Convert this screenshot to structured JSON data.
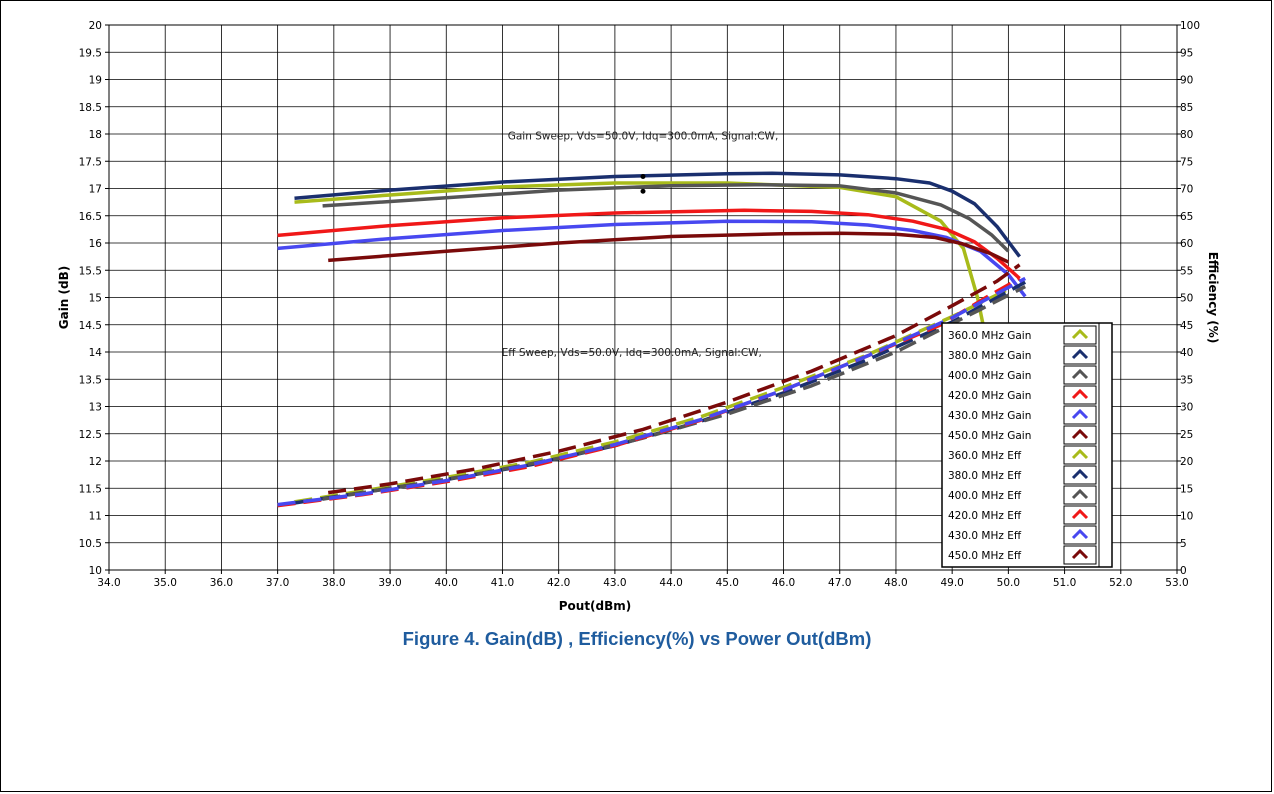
{
  "caption": "Figure 4. Gain(dB) , Efficiency(%) vs Power Out(dBm)",
  "chart_data": {
    "type": "line",
    "xlabel": "Pout(dBm)",
    "ylabel": "Gain (dB)",
    "y2label": "Efficiency (%)",
    "xlim": [
      34,
      53
    ],
    "ylim": [
      10,
      20
    ],
    "y2lim": [
      0,
      100
    ],
    "x_ticks": [
      "34.0",
      "35.0",
      "36.0",
      "37.0",
      "38.0",
      "39.0",
      "40.0",
      "41.0",
      "42.0",
      "43.0",
      "44.0",
      "45.0",
      "46.0",
      "47.0",
      "48.0",
      "49.0",
      "50.0",
      "51.0",
      "52.0",
      "53.0"
    ],
    "y_ticks": [
      "10",
      "10.5",
      "11",
      "11.5",
      "12",
      "12.5",
      "13",
      "13.5",
      "14",
      "14.5",
      "15",
      "15.5",
      "16",
      "16.5",
      "17",
      "17.5",
      "18",
      "18.5",
      "19",
      "19.5",
      "20"
    ],
    "y2_ticks": [
      "0",
      "5",
      "10",
      "15",
      "20",
      "25",
      "30",
      "35",
      "40",
      "45",
      "50",
      "55",
      "60",
      "65",
      "70",
      "75",
      "80",
      "85",
      "90",
      "95",
      "100"
    ],
    "grid": true,
    "legend_position": "right",
    "annotations": [
      {
        "text": "Gain Sweep, Vds=50.0V, Idq=300.0mA, Signal:CW,",
        "x": 43.5,
        "y": 17.97
      },
      {
        "text": "Eff Sweep, Vds=50.0V, Idq=300.0mA, Signal:CW,",
        "x": 43.3,
        "y": 14.0
      }
    ],
    "series": [
      {
        "name": "360.0 MHz Gain",
        "color": "#a8bb1a",
        "dash": false,
        "axis": "left",
        "x": [
          37.3,
          39.0,
          41.0,
          43.0,
          45.0,
          47.0,
          48.0,
          48.8,
          49.2,
          49.45,
          49.65,
          49.78
        ],
        "y": [
          16.75,
          16.88,
          17.03,
          17.1,
          17.1,
          17.02,
          16.85,
          16.4,
          15.9,
          15.0,
          14.0,
          13.2
        ]
      },
      {
        "name": "380.0 MHz Gain",
        "color": "#1a2f6e",
        "dash": false,
        "axis": "left",
        "x": [
          37.3,
          39.0,
          41.0,
          43.0,
          45.0,
          45.8,
          47.0,
          48.0,
          48.6,
          49.0,
          49.4,
          49.8,
          50.2
        ],
        "y": [
          16.82,
          16.97,
          17.12,
          17.22,
          17.27,
          17.28,
          17.25,
          17.18,
          17.1,
          16.95,
          16.72,
          16.3,
          15.75
        ]
      },
      {
        "name": "400.0 MHz Gain",
        "color": "#555555",
        "dash": false,
        "axis": "left",
        "x": [
          37.8,
          40.0,
          42.0,
          44.0,
          45.5,
          47.0,
          48.0,
          48.8,
          49.3,
          49.7,
          50.0
        ],
        "y": [
          16.68,
          16.83,
          16.97,
          17.05,
          17.07,
          17.05,
          16.92,
          16.7,
          16.45,
          16.15,
          15.85
        ]
      },
      {
        "name": "420.0 MHz Gain",
        "color": "#f01818",
        "dash": false,
        "axis": "left",
        "x": [
          37.0,
          39.0,
          41.0,
          43.0,
          45.3,
          46.5,
          47.5,
          48.3,
          48.9,
          49.4,
          49.8,
          50.2
        ],
        "y": [
          16.14,
          16.32,
          16.46,
          16.55,
          16.6,
          16.58,
          16.52,
          16.4,
          16.25,
          16.02,
          15.72,
          15.35
        ]
      },
      {
        "name": "430.0 MHz Gain",
        "color": "#4848f0",
        "dash": false,
        "axis": "left",
        "x": [
          37.0,
          39.0,
          41.0,
          43.0,
          45.0,
          46.5,
          47.5,
          48.3,
          48.9,
          49.5,
          50.0,
          50.3
        ],
        "y": [
          15.9,
          16.08,
          16.23,
          16.34,
          16.4,
          16.39,
          16.33,
          16.23,
          16.1,
          15.85,
          15.42,
          15.02
        ]
      },
      {
        "name": "450.0 MHz Gain",
        "color": "#7a0a0a",
        "dash": false,
        "axis": "left",
        "x": [
          37.9,
          40.0,
          42.0,
          44.0,
          46.0,
          47.0,
          48.0,
          48.7,
          49.2,
          49.7,
          50.0
        ],
        "y": [
          15.68,
          15.85,
          16.0,
          16.12,
          16.17,
          16.18,
          16.16,
          16.1,
          15.98,
          15.8,
          15.65
        ]
      },
      {
        "name": "360.0 MHz Eff",
        "color": "#a8bb1a",
        "dash": true,
        "axis": "right",
        "x": [
          37.3,
          38.5,
          40.0,
          41.5,
          43.0,
          44.5,
          46.0,
          47.5,
          49.0,
          50.0
        ],
        "y": [
          12.5,
          14.5,
          17.0,
          19.8,
          23.5,
          28.0,
          33.5,
          39.5,
          46.5,
          51.5
        ]
      },
      {
        "name": "380.0 MHz Eff",
        "color": "#1a2f6e",
        "dash": true,
        "axis": "right",
        "x": [
          37.3,
          38.5,
          40.0,
          41.5,
          43.0,
          44.5,
          46.0,
          47.5,
          49.0,
          50.3
        ],
        "y": [
          12.3,
          14.2,
          16.6,
          19.3,
          22.8,
          27.2,
          32.5,
          38.6,
          45.5,
          52.8
        ]
      },
      {
        "name": "400.0 MHz Eff",
        "color": "#555555",
        "dash": true,
        "axis": "right",
        "x": [
          37.8,
          39.0,
          40.5,
          42.0,
          43.5,
          45.0,
          46.5,
          48.0,
          49.5,
          50.3
        ],
        "y": [
          13.0,
          15.0,
          17.5,
          20.5,
          24.2,
          28.6,
          33.8,
          40.0,
          47.8,
          52.0
        ]
      },
      {
        "name": "420.0 MHz Eff",
        "color": "#f01818",
        "dash": true,
        "axis": "right",
        "x": [
          37.0,
          38.5,
          40.0,
          41.5,
          43.0,
          44.5,
          46.0,
          47.5,
          48.8,
          49.6,
          50.2
        ],
        "y": [
          11.8,
          13.8,
          16.2,
          19.0,
          22.8,
          27.4,
          33.0,
          39.3,
          45.0,
          50.0,
          53.5
        ]
      },
      {
        "name": "430.0 MHz Eff",
        "color": "#4848f0",
        "dash": true,
        "axis": "right",
        "x": [
          37.0,
          38.5,
          40.0,
          41.5,
          43.0,
          44.5,
          46.0,
          47.5,
          49.0,
          50.3
        ],
        "y": [
          12.0,
          13.9,
          16.4,
          19.3,
          23.0,
          27.5,
          33.0,
          39.3,
          46.3,
          53.5
        ]
      },
      {
        "name": "450.0 MHz Eff",
        "color": "#7a0a0a",
        "dash": true,
        "axis": "right",
        "x": [
          37.9,
          39.0,
          40.5,
          42.0,
          43.5,
          45.0,
          46.5,
          48.0,
          49.0,
          49.8,
          50.2
        ],
        "y": [
          14.2,
          15.8,
          18.5,
          21.8,
          25.8,
          30.8,
          36.5,
          43.0,
          48.5,
          53.0,
          56.0
        ]
      }
    ]
  }
}
